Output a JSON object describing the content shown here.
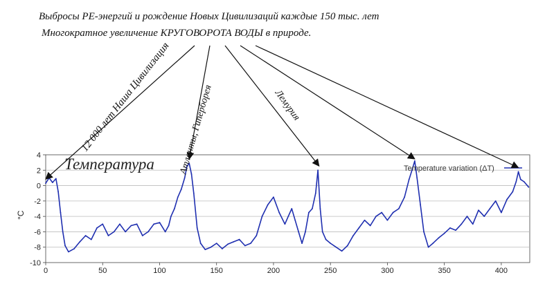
{
  "heading": {
    "line1": "Выбросы  РЕ-энергий  и рождение  Новых Цивилизаций каждые 150 тыс. лет",
    "line2": "Многократное увеличение КРУГОВОРОТА ВОДЫ  в природе."
  },
  "annotations": [
    {
      "text": "12 000 лет Наша Цивилизация",
      "target_x": 0
    },
    {
      "text": "Атланты, Гиперборея",
      "target_x": 126
    },
    {
      "text": "Лемурия",
      "target_x": 240
    },
    {
      "text": "",
      "target_x": 324
    },
    {
      "text": "",
      "target_x": 415
    }
  ],
  "chart_label": "Температура",
  "colors": {
    "series": "#1f2fb0",
    "arrow": "#111111",
    "grid": "#bbbbbb",
    "axis": "#444444"
  },
  "chart_data": {
    "type": "line",
    "title": "",
    "xlabel": "",
    "ylabel": "°C",
    "xlim": [
      0,
      425
    ],
    "ylim": [
      -10,
      4
    ],
    "xticks": [
      0,
      50,
      100,
      150,
      200,
      250,
      300,
      350,
      400
    ],
    "yticks": [
      -10,
      -8,
      -6,
      -4,
      -2,
      0,
      2,
      4
    ],
    "grid": "horizontal",
    "legend": "top-right",
    "series": [
      {
        "name": "Temperature variation (ΔT)",
        "x": [
          0,
          3,
          6,
          9,
          11,
          13,
          15,
          17,
          20,
          25,
          30,
          35,
          40,
          45,
          50,
          55,
          60,
          65,
          70,
          75,
          80,
          85,
          90,
          95,
          100,
          105,
          108,
          110,
          113,
          116,
          119,
          122,
          124,
          126,
          128,
          130,
          133,
          136,
          140,
          145,
          150,
          155,
          160,
          165,
          170,
          175,
          180,
          185,
          190,
          195,
          200,
          205,
          210,
          213,
          216,
          219,
          222,
          225,
          228,
          231,
          234,
          237,
          239,
          241,
          243,
          246,
          250,
          255,
          260,
          265,
          270,
          275,
          280,
          285,
          290,
          295,
          300,
          305,
          310,
          315,
          319,
          322,
          324,
          326,
          329,
          332,
          336,
          340,
          345,
          350,
          355,
          360,
          365,
          370,
          375,
          380,
          385,
          390,
          395,
          400,
          405,
          410,
          413,
          415,
          417,
          420,
          424
        ],
        "values": [
          0.3,
          1.0,
          0.4,
          0.9,
          -0.8,
          -3.5,
          -6.0,
          -7.8,
          -8.6,
          -8.2,
          -7.3,
          -6.5,
          -7.0,
          -5.5,
          -5.0,
          -6.5,
          -6.0,
          -5.0,
          -6.0,
          -5.2,
          -5.0,
          -6.5,
          -6.0,
          -5.0,
          -4.8,
          -6.0,
          -5.2,
          -4.0,
          -3.0,
          -1.5,
          -0.5,
          1.0,
          2.5,
          2.9,
          1.5,
          -1.0,
          -5.5,
          -7.5,
          -8.3,
          -8.0,
          -7.5,
          -8.2,
          -7.6,
          -7.3,
          -7.0,
          -7.8,
          -7.5,
          -6.5,
          -4.0,
          -2.5,
          -1.5,
          -3.5,
          -5.0,
          -4.0,
          -3.0,
          -4.5,
          -6.0,
          -7.5,
          -6.0,
          -3.5,
          -3.0,
          -1.0,
          2.0,
          -3.0,
          -6.0,
          -7.0,
          -7.5,
          -8.0,
          -8.5,
          -7.8,
          -6.5,
          -5.5,
          -4.5,
          -5.2,
          -4.0,
          -3.5,
          -4.5,
          -3.5,
          -3.0,
          -1.5,
          0.8,
          2.2,
          3.2,
          1.0,
          -2.5,
          -6.0,
          -8.0,
          -7.5,
          -6.8,
          -6.2,
          -5.5,
          -5.8,
          -5.0,
          -4.0,
          -5.0,
          -3.2,
          -4.0,
          -3.0,
          -2.0,
          -3.5,
          -1.8,
          -0.8,
          0.5,
          1.8,
          0.8,
          0.5,
          -0.2
        ]
      }
    ]
  }
}
